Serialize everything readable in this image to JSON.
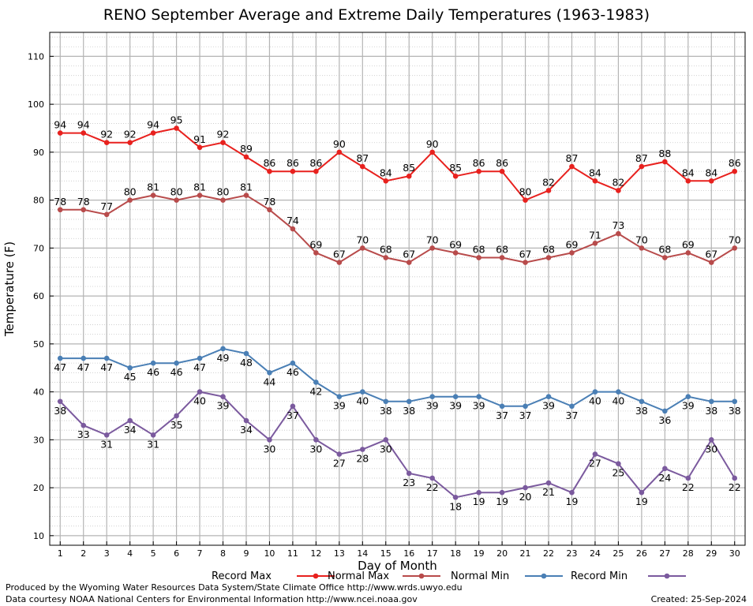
{
  "chart_data": {
    "type": "line",
    "title": "RENO September Average and Extreme Daily Temperatures (1963-1983)",
    "xlabel": "Day of Month",
    "ylabel": "Temperature (F)",
    "x": [
      1,
      2,
      3,
      4,
      5,
      6,
      7,
      8,
      9,
      10,
      11,
      12,
      13,
      14,
      15,
      16,
      17,
      18,
      19,
      20,
      21,
      22,
      23,
      24,
      25,
      26,
      27,
      28,
      29,
      30
    ],
    "xlim": [
      0.55,
      30.45
    ],
    "ylim": [
      8,
      115
    ],
    "yticks": [
      10,
      20,
      30,
      40,
      50,
      60,
      70,
      80,
      90,
      100,
      110
    ],
    "grid": true,
    "legend_position": "bottom",
    "series": [
      {
        "name": "Record Max",
        "color": "#e8211e",
        "label_position": "above",
        "values": [
          94,
          94,
          92,
          92,
          94,
          95,
          91,
          92,
          89,
          86,
          86,
          86,
          90,
          87,
          84,
          85,
          90,
          85,
          86,
          86,
          80,
          82,
          87,
          84,
          82,
          87,
          88,
          84,
          84,
          86
        ]
      },
      {
        "name": "Normal Max",
        "color": "#b84b4b",
        "label_position": "above",
        "values": [
          78,
          78,
          77,
          80,
          81,
          80,
          81,
          80,
          81,
          78,
          74,
          69,
          67,
          70,
          68,
          67,
          70,
          69,
          68,
          68,
          67,
          68,
          69,
          71,
          73,
          70,
          68,
          69,
          67,
          70
        ]
      },
      {
        "name": "Normal Min",
        "color": "#4a7fb5",
        "label_position": "below",
        "values": [
          47,
          47,
          47,
          45,
          46,
          46,
          47,
          49,
          48,
          44,
          46,
          42,
          39,
          40,
          38,
          38,
          39,
          39,
          39,
          37,
          37,
          39,
          37,
          40,
          40,
          38,
          36,
          39,
          38,
          38
        ]
      },
      {
        "name": "Record Min",
        "color": "#7b5a9e",
        "label_position": "below",
        "values": [
          38,
          33,
          31,
          34,
          31,
          35,
          40,
          39,
          34,
          30,
          37,
          30,
          27,
          28,
          30,
          23,
          22,
          18,
          19,
          19,
          20,
          21,
          19,
          27,
          25,
          19,
          24,
          22,
          30,
          22
        ]
      }
    ]
  },
  "footer": {
    "produced_by": "Produced by the Wyoming Water Resources Data System/State Climate Office http://www.wrds.uwyo.edu",
    "data_courtesy": "Data courtesy NOAA National Centers for Environmental Information http://www.ncei.noaa.gov",
    "created": "Created:  25-Sep-2024"
  }
}
